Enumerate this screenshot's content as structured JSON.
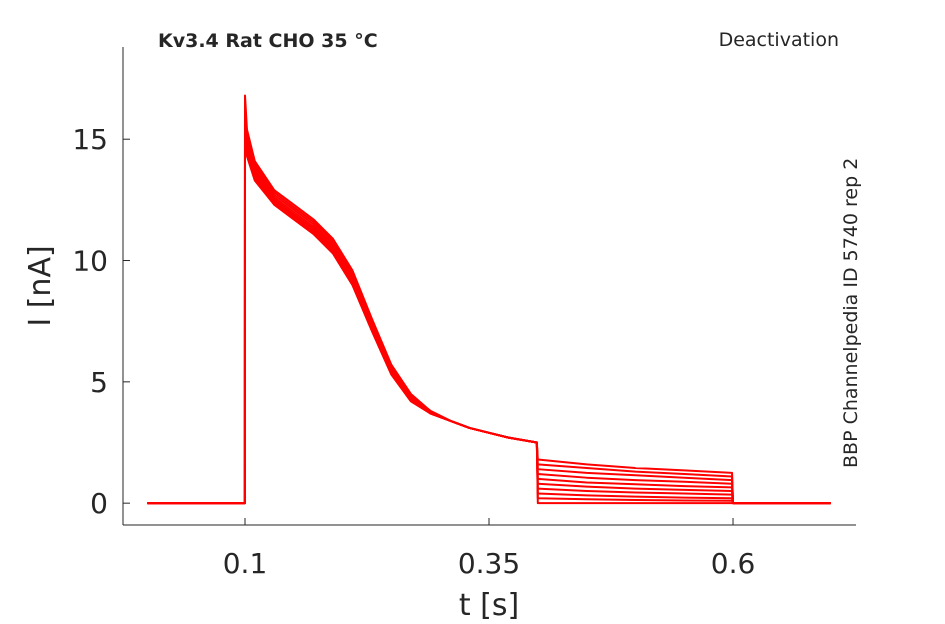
{
  "chart_data": {
    "type": "line",
    "title": "Kv3.4  Rat  CHO  35 °C",
    "annotations": [
      "Deactivation",
      "BBP Channelpedia ID 5740 rep 2"
    ],
    "x_label": "t [s]",
    "y_label": "I [nA]",
    "xlim": [
      -0.025,
      0.726
    ],
    "ylim": [
      -0.9,
      18.8
    ],
    "xticks": [
      0.1,
      0.35,
      0.6
    ],
    "yticks": [
      0,
      5,
      10,
      15
    ],
    "grid": false,
    "x": [
      0,
      0.0999,
      0.1,
      0.102,
      0.11,
      0.13,
      0.15,
      0.17,
      0.19,
      0.21,
      0.23,
      0.25,
      0.27,
      0.29,
      0.31,
      0.33,
      0.35,
      0.37,
      0.399,
      0.4,
      0.45,
      0.5,
      0.55,
      0.599,
      0.6,
      0.7
    ],
    "series": [
      {
        "color": "#ff0000",
        "values": [
          0,
          0,
          16.8,
          15.4,
          14.1,
          12.9,
          12.3,
          11.7,
          10.9,
          9.6,
          7.6,
          5.7,
          4.5,
          3.8,
          3.4,
          3.1,
          2.9,
          2.7,
          2.5,
          1.8,
          1.6,
          1.45,
          1.35,
          1.25,
          0,
          0
        ]
      },
      {
        "color": "#ff0000",
        "values": [
          0,
          0,
          16.5,
          15.2,
          14.0,
          12.8,
          12.2,
          11.6,
          10.8,
          9.5,
          7.5,
          5.6,
          4.4,
          3.8,
          3.4,
          3.1,
          2.9,
          2.7,
          2.5,
          1.6,
          1.45,
          1.3,
          1.2,
          1.1,
          0,
          0
        ]
      },
      {
        "color": "#ff0000",
        "values": [
          0,
          0,
          16.3,
          15.0,
          13.9,
          12.7,
          12.1,
          11.5,
          10.7,
          9.4,
          7.4,
          5.6,
          4.4,
          3.8,
          3.4,
          3.1,
          2.9,
          2.7,
          2.5,
          1.4,
          1.25,
          1.15,
          1.05,
          0.95,
          0,
          0
        ]
      },
      {
        "color": "#ff0000",
        "values": [
          0,
          0,
          16.1,
          14.9,
          13.8,
          12.6,
          12.0,
          11.4,
          10.6,
          9.3,
          7.4,
          5.5,
          4.4,
          3.8,
          3.4,
          3.1,
          2.9,
          2.7,
          2.5,
          1.2,
          1.05,
          0.95,
          0.88,
          0.8,
          0,
          0
        ]
      },
      {
        "color": "#ff0000",
        "values": [
          0,
          0,
          15.9,
          14.8,
          13.7,
          12.5,
          11.9,
          11.3,
          10.5,
          9.2,
          7.3,
          5.5,
          4.3,
          3.8,
          3.4,
          3.1,
          2.9,
          2.7,
          2.5,
          1.0,
          0.85,
          0.78,
          0.7,
          0.65,
          0,
          0
        ]
      },
      {
        "color": "#ff0000",
        "values": [
          0,
          0,
          15.7,
          14.7,
          13.6,
          12.5,
          11.9,
          11.3,
          10.5,
          9.2,
          7.3,
          5.4,
          4.3,
          3.7,
          3.4,
          3.1,
          2.9,
          2.7,
          2.5,
          0.8,
          0.68,
          0.6,
          0.55,
          0.5,
          0,
          0
        ]
      },
      {
        "color": "#ff0000",
        "values": [
          0,
          0,
          15.6,
          14.6,
          13.5,
          12.4,
          11.8,
          11.2,
          10.4,
          9.1,
          7.2,
          5.4,
          4.3,
          3.7,
          3.4,
          3.1,
          2.9,
          2.7,
          2.5,
          0.6,
          0.5,
          0.44,
          0.4,
          0.35,
          0,
          0
        ]
      },
      {
        "color": "#ff0000",
        "values": [
          0,
          0,
          15.5,
          14.5,
          13.5,
          12.4,
          11.8,
          11.2,
          10.4,
          9.1,
          7.2,
          5.4,
          4.3,
          3.7,
          3.4,
          3.1,
          2.9,
          2.7,
          2.5,
          0.4,
          0.32,
          0.27,
          0.23,
          0.2,
          0,
          0
        ]
      },
      {
        "color": "#ff0000",
        "values": [
          0,
          0,
          15.4,
          14.4,
          13.4,
          12.3,
          11.7,
          11.1,
          10.3,
          9.0,
          7.1,
          5.3,
          4.2,
          3.7,
          3.4,
          3.1,
          2.9,
          2.7,
          2.5,
          0.2,
          0.16,
          0.13,
          0.11,
          0.1,
          0,
          0
        ]
      },
      {
        "color": "#ff0000",
        "values": [
          0,
          0,
          15.3,
          14.3,
          13.3,
          12.3,
          11.7,
          11.1,
          10.3,
          9.0,
          7.1,
          5.3,
          4.2,
          3.7,
          3.4,
          3.1,
          2.9,
          2.7,
          2.5,
          0,
          0,
          0,
          0,
          0,
          0,
          0
        ]
      }
    ]
  }
}
